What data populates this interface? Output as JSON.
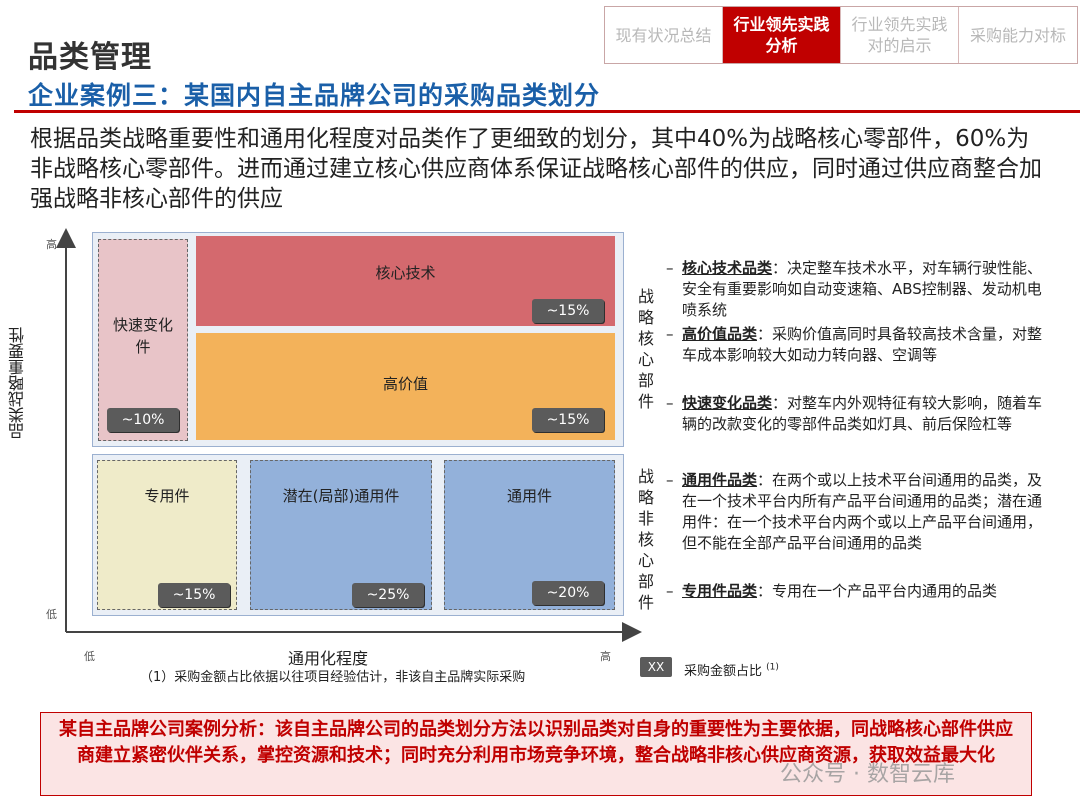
{
  "header": {
    "page_title": "品类管理",
    "subtitle": "企业案例三：某国内自主品牌公司的采购品类划分",
    "nav_tabs": [
      {
        "label_line1": "现有状况总结",
        "label_line2": ""
      },
      {
        "label_line1": "行业领先实践",
        "label_line2": "分析"
      },
      {
        "label_line1": "行业领先实践",
        "label_line2": "对的启示"
      },
      {
        "label_line1": "采购能力对标",
        "label_line2": ""
      }
    ],
    "active_tab": 1
  },
  "intro": "根据品类战略重要性和通用化程度对品类作了更细致的划分，其中40%为战略核心零部件，60%为非战略核心零部件。进而通过建立核心供应商体系保证战略核心部件的供应，同时通过供应商整合加强战略非核心部件的供应",
  "matrix": {
    "y_axis_title": "品类战略重要性",
    "x_axis_title": "通用化程度",
    "y_high": "高",
    "y_low": "低",
    "x_low": "低",
    "x_high": "高",
    "band_core_label": "战略核心部件",
    "band_noncore_label": "战略非核心部件",
    "cells": {
      "fast": {
        "label": "快速变化件",
        "pct": "~10%"
      },
      "core_tech": {
        "label": "核心技术",
        "pct": "~15%"
      },
      "high_value": {
        "label": "高价值",
        "pct": "~15%"
      },
      "special": {
        "label": "专用件",
        "pct": "~15%"
      },
      "potential": {
        "label": "潜在(局部)通用件",
        "pct": "~25%"
      },
      "general": {
        "label": "通用件",
        "pct": "~20%"
      }
    },
    "colors": {
      "fast": "#e8c4c8",
      "core_tech": "#d4696e",
      "high_value": "#f3b25a",
      "special": "#efebc9",
      "potential": "#93b1da",
      "general": "#93b1da",
      "band": "#eaeff6"
    }
  },
  "descriptions": [
    {
      "term": "核心技术品类",
      "text": "：决定整车技术水平，对车辆行驶性能、安全有重要影响如自动变速箱、ABS控制器、发动机电喷系统"
    },
    {
      "term": "高价值品类",
      "text": "：采购价值高同时具备较高技术含量，对整车成本影响较大如动力转向器、空调等"
    },
    {
      "term": "快速变化品类",
      "text": "：对整车内外观特征有较大影响，随着车辆的改款变化的零部件品类如灯具、前后保险杠等"
    },
    {
      "term": "通用件品类",
      "text": "：在两个或以上技术平台间通用的品类，及在一个技术平台内所有产品平台间通用的品类；潜在通用件：在一个技术平台内两个或以上产品平台间通用，但不能在全部产品平台间通用的品类"
    },
    {
      "term": "专用件品类",
      "text": "：专用在一个产品平台内通用的品类"
    }
  ],
  "footnote": "（1）采购金额占比依据以往项目经验估计，非该自主品牌实际采购",
  "legend": {
    "box_text": "XX",
    "label": "采购金额占比",
    "sup": "(1)"
  },
  "conclusion": "某自主品牌公司案例分析：该自主品牌公司的品类划分方法以识别品类对自身的重要性为主要依据，同战略核心部件供应商建立紧密伙伴关系，掌控资源和技术；同时充分利用市场竞争环境，整合战略非核心供应商资源，获取效益最大化",
  "watermark": "公众号 · 数智云库"
}
